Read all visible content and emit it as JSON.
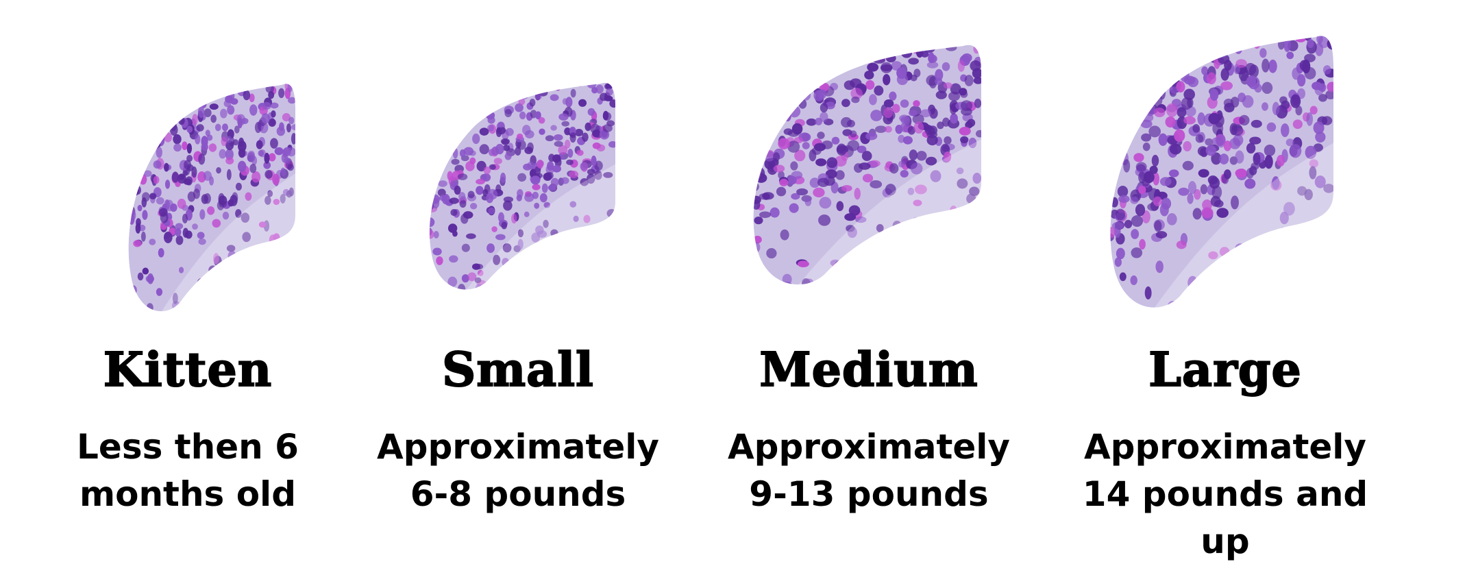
{
  "sizes": [
    {
      "title": "Kitten",
      "description": "Less then 6 months old"
    },
    {
      "title": "Small",
      "description": "Approximately 6-8 pounds"
    },
    {
      "title": "Medium",
      "description": "Approximately 9-13 pounds"
    },
    {
      "title": "Large",
      "description": "Approximately 14 pounds and up"
    }
  ],
  "colors": {
    "glitter_dark": "#5b2a9e",
    "glitter_mid": "#8a55c8",
    "glitter_pink": "#c04fd0",
    "base": "#c9bfe3"
  }
}
